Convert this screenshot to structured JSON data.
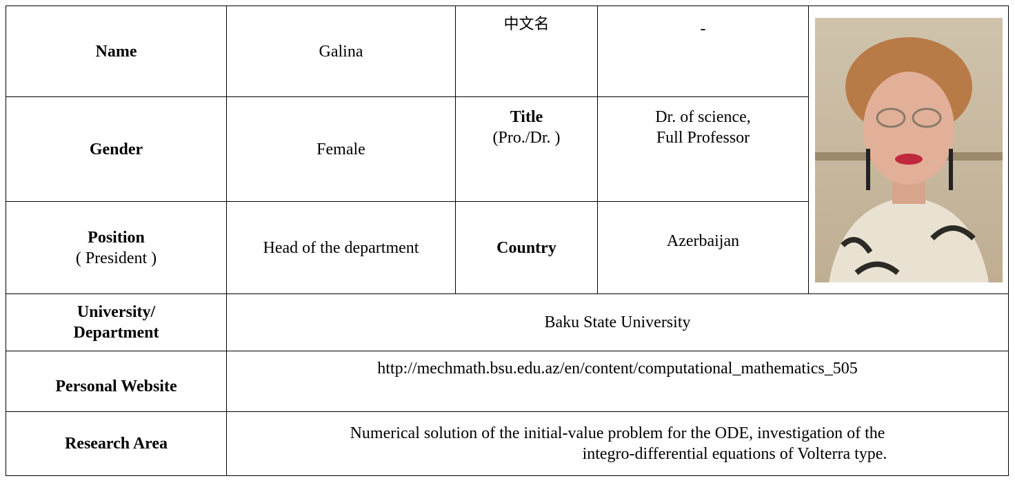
{
  "table": {
    "rows": [
      [
        [
          "Name"
        ],
        [
          "Galina"
        ],
        [
          "中文名"
        ],
        [
          "-"
        ]
      ],
      [
        [
          "Gender"
        ],
        [
          "Female"
        ],
        [
          "Title",
          "(Pro./Dr. )"
        ],
        [
          "Dr. of science,",
          "Full Professor"
        ]
      ],
      [
        [
          "Position",
          "( President )"
        ],
        [
          "Head of the department"
        ],
        [
          "Country"
        ],
        [
          "Azerbaijan"
        ]
      ],
      [
        [
          "University/",
          "Department"
        ],
        [
          "Baku State University"
        ]
      ],
      [
        [
          "Personal Website"
        ],
        [
          "http://mechmath.bsu.edu.az/en/content/computational_mathematics_505"
        ]
      ],
      [
        [
          "Research Area"
        ],
        [
          "Numerical solution of the initial-value problem for the ODE, investigation of the",
          "integro-differential equations of Volterra type."
        ]
      ]
    ]
  }
}
